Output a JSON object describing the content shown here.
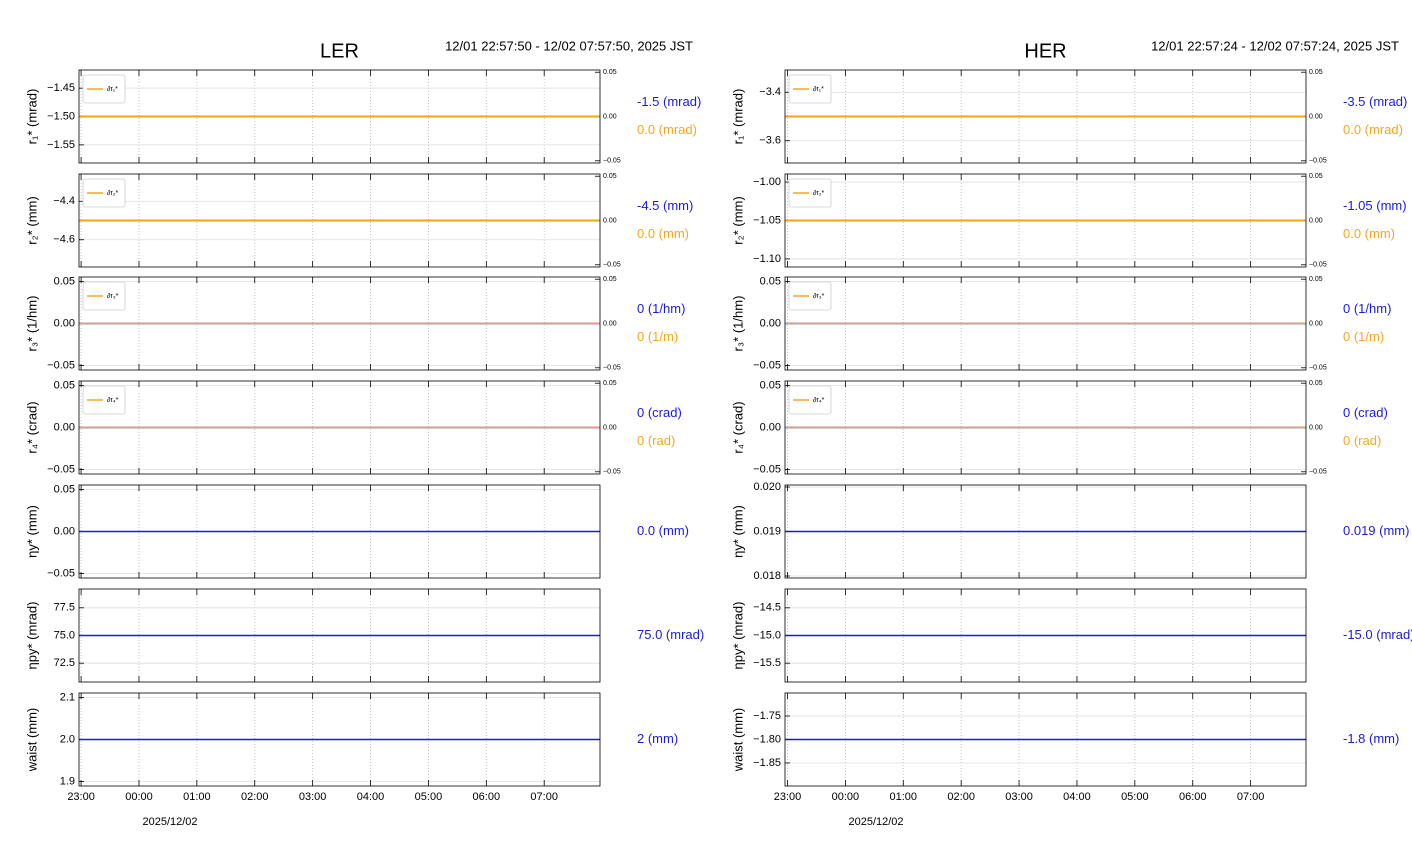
{
  "chart_data": [
    {
      "type": "line",
      "title": "LER",
      "subtitle": "12/01 22:57:50 - 12/02 07:57:50, 2025 JST",
      "ylabel": "r₁* (mrad)",
      "x": [
        22.9639,
        31.9639
      ],
      "xlim": [
        22.9639,
        31.9639
      ],
      "ylim": [
        -1.582,
        -1.418
      ],
      "yticks": [
        {
          "value": -1.45,
          "label": "−1.45"
        },
        {
          "value": -1.5,
          "label": "−1.50"
        },
        {
          "value": -1.55,
          "label": "−1.55"
        }
      ],
      "y2lim": [
        -0.0525,
        0.0525
      ],
      "y2ticks": [
        0.05,
        {
          "value": 0,
          "label": "0.00"
        },
        {
          "value": -0.05,
          "label": "−0.05"
        }
      ],
      "grid": true,
      "legend": "upper left",
      "series": [
        {
          "color": "#1a1adb",
          "values": [
            -1.5,
            -1.5
          ]
        },
        {
          "name": "∂r₁*",
          "color": "#f5a623",
          "axis": "y2",
          "values": [
            0,
            0
          ]
        }
      ],
      "annotations": [
        {
          "text": "-1.5 (mrad)",
          "color": "#1a1adb"
        },
        {
          "text": "0.0 (mrad)",
          "color": "#f5a623"
        }
      ]
    },
    {
      "type": "line",
      "ylabel": "r₂* (mm)",
      "x": [
        22.9639,
        31.9639
      ],
      "xlim": [
        22.9639,
        31.9639
      ],
      "ylim": [
        -4.742,
        -4.258
      ],
      "yticks": [
        {
          "value": -4.4,
          "label": "−4.4"
        },
        {
          "value": -4.6,
          "label": "−4.6"
        }
      ],
      "y2lim": [
        -0.0525,
        0.0525
      ],
      "y2ticks": [
        0.05,
        {
          "value": 0,
          "label": "0.00"
        },
        {
          "value": -0.05,
          "label": "−0.05"
        }
      ],
      "grid": true,
      "legend": "upper left",
      "series": [
        {
          "color": "#1a1adb",
          "values": [
            -4.5,
            -4.5
          ]
        },
        {
          "name": "∂r₂*",
          "color": "#f5a623",
          "axis": "y2",
          "values": [
            0,
            0
          ]
        }
      ],
      "annotations": [
        {
          "text": "-4.5 (mm)",
          "color": "#1a1adb"
        },
        {
          "text": "0.0 (mm)",
          "color": "#f5a623"
        }
      ]
    },
    {
      "type": "line",
      "ylabel": "r₃* (1/hm)",
      "x": [
        22.9639,
        31.9639
      ],
      "xlim": [
        22.9639,
        31.9639
      ],
      "ylim": [
        -0.0555,
        0.0555
      ],
      "yticks": [
        0.05,
        {
          "value": 0,
          "label": "0.00"
        },
        {
          "value": -0.05,
          "label": "−0.05"
        }
      ],
      "y2lim": [
        -0.0525,
        0.0525
      ],
      "y2ticks": [
        0.05,
        {
          "value": 0,
          "label": "0.00"
        },
        {
          "value": -0.05,
          "label": "−0.05"
        }
      ],
      "grid": true,
      "legend": "upper left",
      "series": [
        {
          "color": "#1a1adb",
          "values": [
            0,
            0
          ]
        },
        {
          "name": "∂r₃*",
          "color": "#f5a623",
          "axis": "y2",
          "values": [
            0,
            0
          ]
        }
      ],
      "annotations": [
        {
          "text": "0 (1/hm)",
          "color": "#1a1adb"
        },
        {
          "text": "0 (1/m)",
          "color": "#f5a623"
        }
      ]
    },
    {
      "type": "line",
      "ylabel": "r₄* (crad)",
      "x": [
        22.9639,
        31.9639
      ],
      "xlim": [
        22.9639,
        31.9639
      ],
      "ylim": [
        -0.0555,
        0.0555
      ],
      "yticks": [
        0.05,
        {
          "value": 0,
          "label": "0.00"
        },
        {
          "value": -0.05,
          "label": "−0.05"
        }
      ],
      "y2lim": [
        -0.0525,
        0.0525
      ],
      "y2ticks": [
        0.05,
        {
          "value": 0,
          "label": "0.00"
        },
        {
          "value": -0.05,
          "label": "−0.05"
        }
      ],
      "grid": true,
      "legend": "upper left",
      "series": [
        {
          "color": "#1a1adb",
          "values": [
            0,
            0
          ]
        },
        {
          "name": "∂r₄*",
          "color": "#f5a623",
          "axis": "y2",
          "values": [
            0,
            0
          ]
        }
      ],
      "annotations": [
        {
          "text": "0 (crad)",
          "color": "#1a1adb"
        },
        {
          "text": "0 (rad)",
          "color": "#f5a623"
        }
      ]
    },
    {
      "type": "line",
      "ylabel": "ηy* (mm)",
      "x": [
        22.9639,
        31.9639
      ],
      "xlim": [
        22.9639,
        31.9639
      ],
      "ylim": [
        -0.0555,
        0.0555
      ],
      "yticks": [
        0.05,
        {
          "value": 0,
          "label": "0.00"
        },
        {
          "value": -0.05,
          "label": "−0.05"
        }
      ],
      "grid": true,
      "series": [
        {
          "color": "#1a1adb",
          "values": [
            0,
            0
          ]
        }
      ],
      "annotations": [
        {
          "text": "0.0 (mm)",
          "color": "#1a1adb"
        }
      ]
    },
    {
      "type": "line",
      "ylabel": "ηpy* (mrad)",
      "x": [
        22.9639,
        31.9639
      ],
      "xlim": [
        22.9639,
        31.9639
      ],
      "ylim": [
        70.8,
        79.2
      ],
      "yticks": [
        77.5,
        {
          "value": 75,
          "label": "75.0"
        },
        72.5
      ],
      "grid": true,
      "series": [
        {
          "color": "#1a1adb",
          "values": [
            75,
            75
          ]
        }
      ],
      "annotations": [
        {
          "text": "75.0 (mrad)",
          "color": "#1a1adb"
        }
      ]
    },
    {
      "type": "line",
      "ylabel": "waist (mm)",
      "xlabel": "2025/12/02",
      "x": [
        22.9639,
        31.9639
      ],
      "xlim": [
        22.9639,
        31.9639
      ],
      "ylim": [
        1.889,
        2.111
      ],
      "yticks": [
        2.1,
        {
          "value": 2,
          "label": "2.0"
        },
        1.9
      ],
      "grid": true,
      "xticks": [
        {
          "value": 23,
          "label": "23:00"
        },
        {
          "value": 24,
          "label": "00:00"
        },
        {
          "value": 25,
          "label": "01:00"
        },
        {
          "value": 26,
          "label": "02:00"
        },
        {
          "value": 27,
          "label": "03:00"
        },
        {
          "value": 28,
          "label": "04:00"
        },
        {
          "value": 29,
          "label": "05:00"
        },
        {
          "value": 30,
          "label": "06:00"
        },
        {
          "value": 31,
          "label": "07:00"
        }
      ],
      "series": [
        {
          "color": "#1a1adb",
          "values": [
            2,
            2
          ]
        }
      ],
      "annotations": [
        {
          "text": "2 (mm)",
          "color": "#1a1adb"
        }
      ]
    },
    {
      "type": "line",
      "title": "HER",
      "subtitle": "12/01 22:57:24 - 12/02 07:57:24, 2025 JST",
      "ylabel": "r₁* (mrad)",
      "x": [
        22.9567,
        31.9567
      ],
      "xlim": [
        22.9567,
        31.9567
      ],
      "ylim": [
        -3.692,
        -3.308
      ],
      "yticks": [
        {
          "value": -3.4,
          "label": "−3.4"
        },
        {
          "value": -3.6,
          "label": "−3.6"
        }
      ],
      "y2lim": [
        -0.0525,
        0.0525
      ],
      "y2ticks": [
        0.05,
        {
          "value": 0,
          "label": "0.00"
        },
        {
          "value": -0.05,
          "label": "−0.05"
        }
      ],
      "grid": true,
      "legend": "upper left",
      "series": [
        {
          "color": "#1a1adb",
          "values": [
            -3.5,
            -3.5
          ]
        },
        {
          "name": "∂r₁*",
          "color": "#f5a623",
          "axis": "y2",
          "values": [
            0,
            0
          ]
        }
      ],
      "annotations": [
        {
          "text": "-3.5 (mrad)",
          "color": "#1a1adb"
        },
        {
          "text": "0.0 (mrad)",
          "color": "#f5a623"
        }
      ]
    },
    {
      "type": "line",
      "ylabel": "r₂* (mm)",
      "x": [
        22.9567,
        31.9567
      ],
      "xlim": [
        22.9567,
        31.9567
      ],
      "ylim": [
        -1.1105,
        -0.9895
      ],
      "yticks": [
        {
          "value": -1.0,
          "label": "−1.00"
        },
        {
          "value": -1.05,
          "label": "−1.05"
        },
        {
          "value": -1.1,
          "label": "−1.10"
        }
      ],
      "y2lim": [
        -0.0525,
        0.0525
      ],
      "y2ticks": [
        0.05,
        {
          "value": 0,
          "label": "0.00"
        },
        {
          "value": -0.05,
          "label": "−0.05"
        }
      ],
      "grid": true,
      "legend": "upper left",
      "series": [
        {
          "color": "#1a1adb",
          "values": [
            -1.05,
            -1.05
          ]
        },
        {
          "name": "∂r₂*",
          "color": "#f5a623",
          "axis": "y2",
          "values": [
            0,
            0
          ]
        }
      ],
      "annotations": [
        {
          "text": "-1.05 (mm)",
          "color": "#1a1adb"
        },
        {
          "text": "0.0 (mm)",
          "color": "#f5a623"
        }
      ]
    },
    {
      "type": "line",
      "ylabel": "r₃* (1/hm)",
      "x": [
        22.9567,
        31.9567
      ],
      "xlim": [
        22.9567,
        31.9567
      ],
      "ylim": [
        -0.0555,
        0.0555
      ],
      "yticks": [
        0.05,
        {
          "value": 0,
          "label": "0.00"
        },
        {
          "value": -0.05,
          "label": "−0.05"
        }
      ],
      "y2lim": [
        -0.0525,
        0.0525
      ],
      "y2ticks": [
        0.05,
        {
          "value": 0,
          "label": "0.00"
        },
        {
          "value": -0.05,
          "label": "−0.05"
        }
      ],
      "grid": true,
      "legend": "upper left",
      "series": [
        {
          "color": "#1a1adb",
          "values": [
            0,
            0
          ]
        },
        {
          "name": "∂r₃*",
          "color": "#f5a623",
          "axis": "y2",
          "values": [
            0,
            0
          ]
        }
      ],
      "annotations": [
        {
          "text": "0 (1/hm)",
          "color": "#1a1adb"
        },
        {
          "text": "0 (1/m)",
          "color": "#f5a623"
        }
      ]
    },
    {
      "type": "line",
      "ylabel": "r₄* (crad)",
      "x": [
        22.9567,
        31.9567
      ],
      "xlim": [
        22.9567,
        31.9567
      ],
      "ylim": [
        -0.0555,
        0.0555
      ],
      "yticks": [
        0.05,
        {
          "value": 0,
          "label": "0.00"
        },
        {
          "value": -0.05,
          "label": "−0.05"
        }
      ],
      "y2lim": [
        -0.0525,
        0.0525
      ],
      "y2ticks": [
        0.05,
        {
          "value": 0,
          "label": "0.00"
        },
        {
          "value": -0.05,
          "label": "−0.05"
        }
      ],
      "grid": true,
      "legend": "upper left",
      "series": [
        {
          "color": "#1a1adb",
          "values": [
            0,
            0
          ]
        },
        {
          "name": "∂r₄*",
          "color": "#f5a623",
          "axis": "y2",
          "values": [
            0,
            0
          ]
        }
      ],
      "annotations": [
        {
          "text": "0 (crad)",
          "color": "#1a1adb"
        },
        {
          "text": "0 (rad)",
          "color": "#f5a623"
        }
      ]
    },
    {
      "type": "line",
      "ylabel": "ηy* (mm)",
      "x": [
        22.9567,
        31.9567
      ],
      "xlim": [
        22.9567,
        31.9567
      ],
      "ylim": [
        0.017955,
        0.020045
      ],
      "yticks": [
        {
          "value": 0.02,
          "label": "0.020"
        },
        0.019,
        0.018
      ],
      "grid": true,
      "series": [
        {
          "color": "#1a1adb",
          "values": [
            0.019,
            0.019
          ]
        }
      ],
      "annotations": [
        {
          "text": "0.019 (mm)",
          "color": "#1a1adb"
        }
      ]
    },
    {
      "type": "line",
      "ylabel": "ηpy* (mrad)",
      "x": [
        22.9567,
        31.9567
      ],
      "xlim": [
        22.9567,
        31.9567
      ],
      "ylim": [
        -15.84,
        -14.16
      ],
      "yticks": [
        {
          "value": -14.5,
          "label": "−14.5"
        },
        {
          "value": -15,
          "label": "−15.0"
        },
        {
          "value": -15.5,
          "label": "−15.5"
        }
      ],
      "grid": true,
      "series": [
        {
          "color": "#1a1adb",
          "values": [
            -15,
            -15
          ]
        }
      ],
      "annotations": [
        {
          "text": "-15.0 (mrad)",
          "color": "#1a1adb"
        }
      ]
    },
    {
      "type": "line",
      "ylabel": "waist (mm)",
      "xlabel": "2025/12/02",
      "x": [
        22.9567,
        31.9567
      ],
      "xlim": [
        22.9567,
        31.9567
      ],
      "ylim": [
        -1.899,
        -1.701
      ],
      "yticks": [
        {
          "value": -1.75,
          "label": "−1.75"
        },
        {
          "value": -1.8,
          "label": "−1.80"
        },
        {
          "value": -1.85,
          "label": "−1.85"
        }
      ],
      "grid": true,
      "xticks": [
        {
          "value": 23,
          "label": "23:00"
        },
        {
          "value": 24,
          "label": "00:00"
        },
        {
          "value": 25,
          "label": "01:00"
        },
        {
          "value": 26,
          "label": "02:00"
        },
        {
          "value": 27,
          "label": "03:00"
        },
        {
          "value": 28,
          "label": "04:00"
        },
        {
          "value": 29,
          "label": "05:00"
        },
        {
          "value": 30,
          "label": "06:00"
        },
        {
          "value": 31,
          "label": "07:00"
        }
      ],
      "series": [
        {
          "color": "#1a1adb",
          "values": [
            -1.8,
            -1.8
          ]
        }
      ],
      "annotations": [
        {
          "text": "-1.8 (mm)",
          "color": "#1a1adb"
        }
      ]
    }
  ]
}
